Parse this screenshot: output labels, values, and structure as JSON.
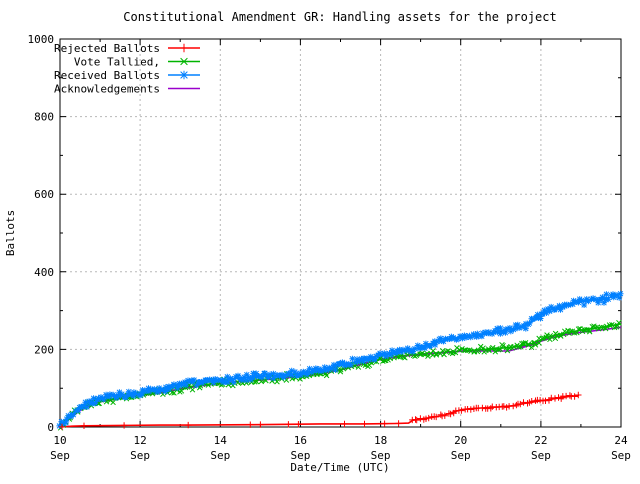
{
  "chart_data": {
    "type": "line",
    "title": "Constitutional Amendment GR: Handling assets for the project",
    "xlabel": "Date/Time (UTC)",
    "ylabel": "Ballots",
    "x_unit": "day of September (UTC)",
    "xlim": [
      10,
      24
    ],
    "ylim": [
      0,
      1000
    ],
    "x_major_ticks": [
      10,
      12,
      14,
      16,
      18,
      20,
      22,
      24
    ],
    "x_minor_ticks": [
      11,
      13,
      15,
      17,
      19,
      21,
      23
    ],
    "x_tick_month": "Sep",
    "y_major_ticks": [
      0,
      200,
      400,
      600,
      800,
      1000
    ],
    "y_minor_ticks": [
      100,
      300,
      500,
      700,
      900
    ],
    "grid": true,
    "legend_position": "top-left-inside",
    "colors": {
      "border": "#000000",
      "grid": "#b8b8b8",
      "background": "#ffffff",
      "rejected": "#ff0000",
      "tallied": "#00b400",
      "received": "#0080ff",
      "acknowledgements": "#9900cc"
    },
    "series": [
      {
        "name": "Rejected Ballots",
        "color": "#ff0000",
        "marker": "plus",
        "points": [
          [
            10.0,
            0
          ],
          [
            10.3,
            2
          ],
          [
            10.6,
            3
          ],
          [
            11.6,
            4
          ],
          [
            12.5,
            5
          ],
          [
            13.2,
            5
          ],
          [
            14.75,
            6
          ],
          [
            15.7,
            7
          ],
          [
            16.5,
            8
          ],
          [
            17.6,
            8
          ],
          [
            18.4,
            9
          ],
          [
            18.7,
            10
          ],
          [
            18.8,
            17
          ],
          [
            19.0,
            21
          ],
          [
            19.3,
            25
          ],
          [
            19.6,
            31
          ],
          [
            19.8,
            38
          ],
          [
            20.0,
            44
          ],
          [
            20.2,
            47
          ],
          [
            20.5,
            49
          ],
          [
            21.0,
            52
          ],
          [
            21.3,
            55
          ],
          [
            21.6,
            61
          ],
          [
            21.9,
            66
          ],
          [
            22.1,
            69
          ],
          [
            22.4,
            74
          ],
          [
            22.6,
            77
          ],
          [
            22.8,
            80
          ],
          [
            22.95,
            82
          ]
        ]
      },
      {
        "name": "Vote Tallied,",
        "color": "#00b400",
        "marker": "cross",
        "points": [
          [
            10.0,
            0
          ],
          [
            10.1,
            10
          ],
          [
            10.25,
            25
          ],
          [
            10.4,
            38
          ],
          [
            10.5,
            45
          ],
          [
            10.75,
            58
          ],
          [
            11.0,
            68
          ],
          [
            11.25,
            72
          ],
          [
            11.5,
            76
          ],
          [
            12.0,
            83
          ],
          [
            12.5,
            90
          ],
          [
            12.9,
            96
          ],
          [
            13.0,
            100
          ],
          [
            13.3,
            105
          ],
          [
            13.5,
            108
          ],
          [
            14.0,
            113
          ],
          [
            14.5,
            118
          ],
          [
            15.0,
            122
          ],
          [
            15.5,
            126
          ],
          [
            16.0,
            131
          ],
          [
            16.5,
            138
          ],
          [
            17.0,
            148
          ],
          [
            17.5,
            162
          ],
          [
            18.0,
            175
          ],
          [
            18.3,
            180
          ],
          [
            18.6,
            184
          ],
          [
            19.0,
            188
          ],
          [
            19.5,
            192
          ],
          [
            20.0,
            196
          ],
          [
            20.5,
            199
          ],
          [
            21.0,
            203
          ],
          [
            21.4,
            207
          ],
          [
            21.7,
            212
          ],
          [
            21.9,
            220
          ],
          [
            22.1,
            228
          ],
          [
            22.3,
            235
          ],
          [
            22.5,
            240
          ],
          [
            22.8,
            245
          ],
          [
            23.0,
            250
          ],
          [
            23.3,
            254
          ],
          [
            23.6,
            258
          ],
          [
            24.0,
            266
          ]
        ]
      },
      {
        "name": "Received Ballots",
        "color": "#0080ff",
        "marker": "asterisk",
        "points": [
          [
            10.0,
            0
          ],
          [
            10.1,
            14
          ],
          [
            10.25,
            30
          ],
          [
            10.4,
            44
          ],
          [
            10.5,
            52
          ],
          [
            10.75,
            65
          ],
          [
            11.0,
            75
          ],
          [
            11.25,
            79
          ],
          [
            11.5,
            83
          ],
          [
            12.0,
            90
          ],
          [
            12.5,
            97
          ],
          [
            12.9,
            103
          ],
          [
            13.0,
            112
          ],
          [
            13.3,
            115
          ],
          [
            13.5,
            117
          ],
          [
            14.0,
            121
          ],
          [
            14.5,
            126
          ],
          [
            15.0,
            129
          ],
          [
            15.5,
            133
          ],
          [
            16.0,
            139
          ],
          [
            16.5,
            146
          ],
          [
            17.0,
            158
          ],
          [
            17.5,
            172
          ],
          [
            18.0,
            185
          ],
          [
            18.3,
            191
          ],
          [
            18.6,
            196
          ],
          [
            18.9,
            202
          ],
          [
            19.1,
            208
          ],
          [
            19.3,
            216
          ],
          [
            19.5,
            220
          ],
          [
            19.7,
            226
          ],
          [
            20.0,
            232
          ],
          [
            20.3,
            235
          ],
          [
            20.6,
            239
          ],
          [
            21.0,
            248
          ],
          [
            21.3,
            253
          ],
          [
            21.6,
            262
          ],
          [
            21.8,
            272
          ],
          [
            22.0,
            288
          ],
          [
            22.2,
            300
          ],
          [
            22.4,
            308
          ],
          [
            22.6,
            312
          ],
          [
            23.0,
            323
          ],
          [
            23.4,
            328
          ],
          [
            23.6,
            331
          ],
          [
            24.0,
            342
          ]
        ]
      },
      {
        "name": "Acknowledgements",
        "color": "#9900cc",
        "marker": "none",
        "points": [
          [
            10.0,
            0
          ],
          [
            10.1,
            9
          ],
          [
            10.25,
            22
          ],
          [
            10.4,
            35
          ],
          [
            10.5,
            42
          ],
          [
            10.75,
            55
          ],
          [
            11.0,
            65
          ],
          [
            11.5,
            74
          ],
          [
            12.0,
            81
          ],
          [
            12.5,
            88
          ],
          [
            13.0,
            98
          ],
          [
            13.5,
            106
          ],
          [
            14.0,
            112
          ],
          [
            14.5,
            117
          ],
          [
            15.0,
            121
          ],
          [
            15.5,
            125
          ],
          [
            16.0,
            130
          ],
          [
            16.5,
            137
          ],
          [
            17.0,
            147
          ],
          [
            17.5,
            161
          ],
          [
            18.0,
            174
          ],
          [
            18.5,
            182
          ],
          [
            19.0,
            187
          ],
          [
            19.5,
            191
          ],
          [
            20.0,
            195
          ],
          [
            20.4,
            196
          ],
          [
            21.2,
            196
          ],
          [
            21.5,
            204
          ],
          [
            21.8,
            212
          ],
          [
            22.0,
            221
          ],
          [
            22.3,
            231
          ],
          [
            22.5,
            236
          ],
          [
            23.0,
            244
          ],
          [
            23.5,
            250
          ],
          [
            24.0,
            257
          ]
        ]
      }
    ]
  }
}
